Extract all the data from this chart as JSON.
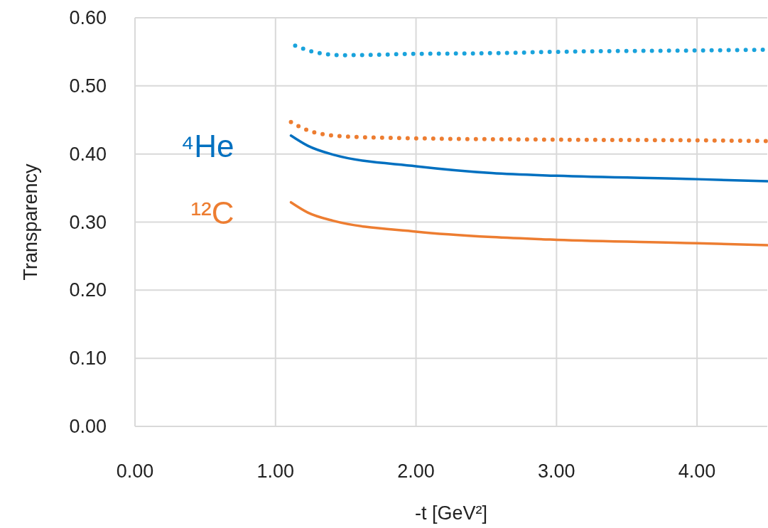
{
  "chart_data": {
    "type": "line",
    "xlabel": "-t [GeV²]",
    "ylabel": "Transparency",
    "xlim": [
      0,
      4.5
    ],
    "ylim": [
      0,
      0.6
    ],
    "xticks": [
      {
        "value": 0,
        "label": "0.00"
      },
      {
        "value": 1,
        "label": "1.00"
      },
      {
        "value": 2,
        "label": "2.00"
      },
      {
        "value": 3,
        "label": "3.00"
      },
      {
        "value": 4,
        "label": "4.00"
      }
    ],
    "yticks": [
      {
        "value": 0,
        "label": "0.00"
      },
      {
        "value": 0.1,
        "label": "0.10"
      },
      {
        "value": 0.2,
        "label": "0.20"
      },
      {
        "value": 0.3,
        "label": "0.30"
      },
      {
        "value": 0.4,
        "label": "0.40"
      },
      {
        "value": 0.5,
        "label": "0.50"
      },
      {
        "value": 0.6,
        "label": "0.60"
      }
    ],
    "grid": true,
    "legend": false,
    "marker": "none",
    "series": [
      {
        "color": "#1aa3dc",
        "line_style": "dotted",
        "x": [
          1.14,
          1.27,
          1.48,
          2.0,
          2.54,
          3.0,
          4.0,
          4.5
        ],
        "values": [
          0.559,
          0.55,
          0.545,
          0.547,
          0.548,
          0.55,
          0.552,
          0.553
        ]
      },
      {
        "color": "#ed7d31",
        "line_style": "dotted",
        "x": [
          1.11,
          1.24,
          1.47,
          2.0,
          3.0,
          4.0,
          4.5
        ],
        "values": [
          0.447,
          0.434,
          0.426,
          0.423,
          0.421,
          0.42,
          0.419
        ]
      },
      {
        "name": "⁴He",
        "color": "#0070c0",
        "line_style": "solid",
        "x": [
          1.11,
          1.23,
          1.41,
          2.0,
          2.54,
          3.0,
          4.0,
          4.5
        ],
        "values": [
          0.427,
          0.412,
          0.399,
          0.382,
          0.372,
          0.368,
          0.363,
          0.36
        ]
      },
      {
        "name": "¹²C",
        "color": "#ed7d31",
        "line_style": "solid",
        "x": [
          1.11,
          1.23,
          1.41,
          2.0,
          2.54,
          3.0,
          4.0,
          4.5
        ],
        "values": [
          0.329,
          0.314,
          0.302,
          0.286,
          0.278,
          0.274,
          0.269,
          0.266
        ]
      }
    ]
  }
}
